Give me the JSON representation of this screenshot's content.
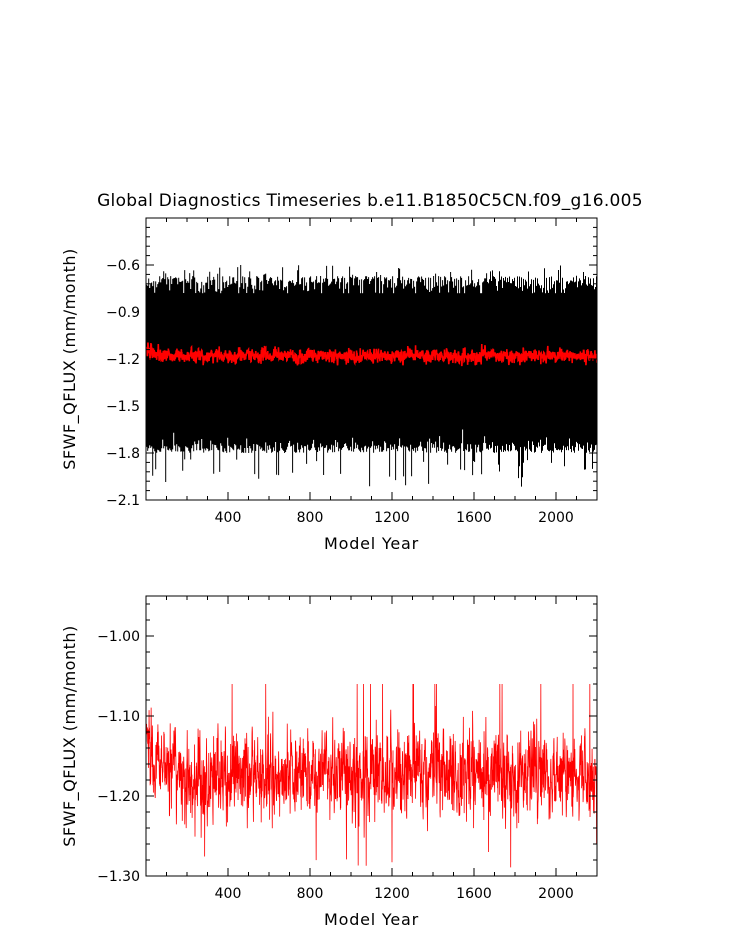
{
  "title": "Global Diagnostics Timeseries b.e11.B1850C5CN.f09_g16.005",
  "colors": {
    "monthly": "#000000",
    "annual": "#ff0000"
  },
  "chart_data": [
    {
      "type": "line",
      "xlabel": "Model Year",
      "ylabel": "SFWF_QFLUX (mm/month)",
      "xlim": [
        0,
        2200
      ],
      "ylim": [
        -2.1,
        -0.3
      ],
      "xticks": [
        400,
        800,
        1200,
        1600,
        2000
      ],
      "xtick_labels": [
        "400",
        "800",
        "1200",
        "1600",
        "2000"
      ],
      "yticks": [
        -2.1,
        -1.8,
        -1.5,
        -1.2,
        -0.9,
        -0.6
      ],
      "ytick_labels": [
        "−2.1",
        "−1.8",
        "−1.5",
        "−1.2",
        "−0.9",
        "−0.6"
      ],
      "grid": false,
      "series": [
        {
          "role": "monthly",
          "color": "#000000",
          "x_start": 1,
          "x_end": 2200,
          "mean": -1.18,
          "typical_min": -1.8,
          "typical_max": -0.67,
          "extreme_min": -2.02,
          "extreme_max": -0.6
        },
        {
          "role": "annual",
          "color": "#ff0000",
          "x_start": 1,
          "x_end": 2200,
          "mean": -1.18,
          "typical_min": -1.23,
          "typical_max": -1.12
        }
      ]
    },
    {
      "type": "line",
      "xlabel": "Model Year",
      "ylabel": "SFWF_QFLUX (mm/month)",
      "xlim": [
        0,
        2200
      ],
      "ylim": [
        -1.3,
        -0.95
      ],
      "xticks": [
        400,
        800,
        1200,
        1600,
        2000
      ],
      "xtick_labels": [
        "400",
        "800",
        "1200",
        "1600",
        "2000"
      ],
      "yticks": [
        -1.3,
        -1.2,
        -1.1,
        -1.0
      ],
      "ytick_labels": [
        "−1.30",
        "−1.20",
        "−1.10",
        "−1.00"
      ],
      "grid": false,
      "series": [
        {
          "role": "annual",
          "color": "#ff0000",
          "x_start": 1,
          "x_end": 2200,
          "mean": -1.175,
          "typical_min": -1.24,
          "typical_max": -1.11,
          "extreme_min": -1.29,
          "extreme_max": -1.06,
          "early_max": -1.06,
          "final_value": -1.26
        }
      ]
    }
  ]
}
